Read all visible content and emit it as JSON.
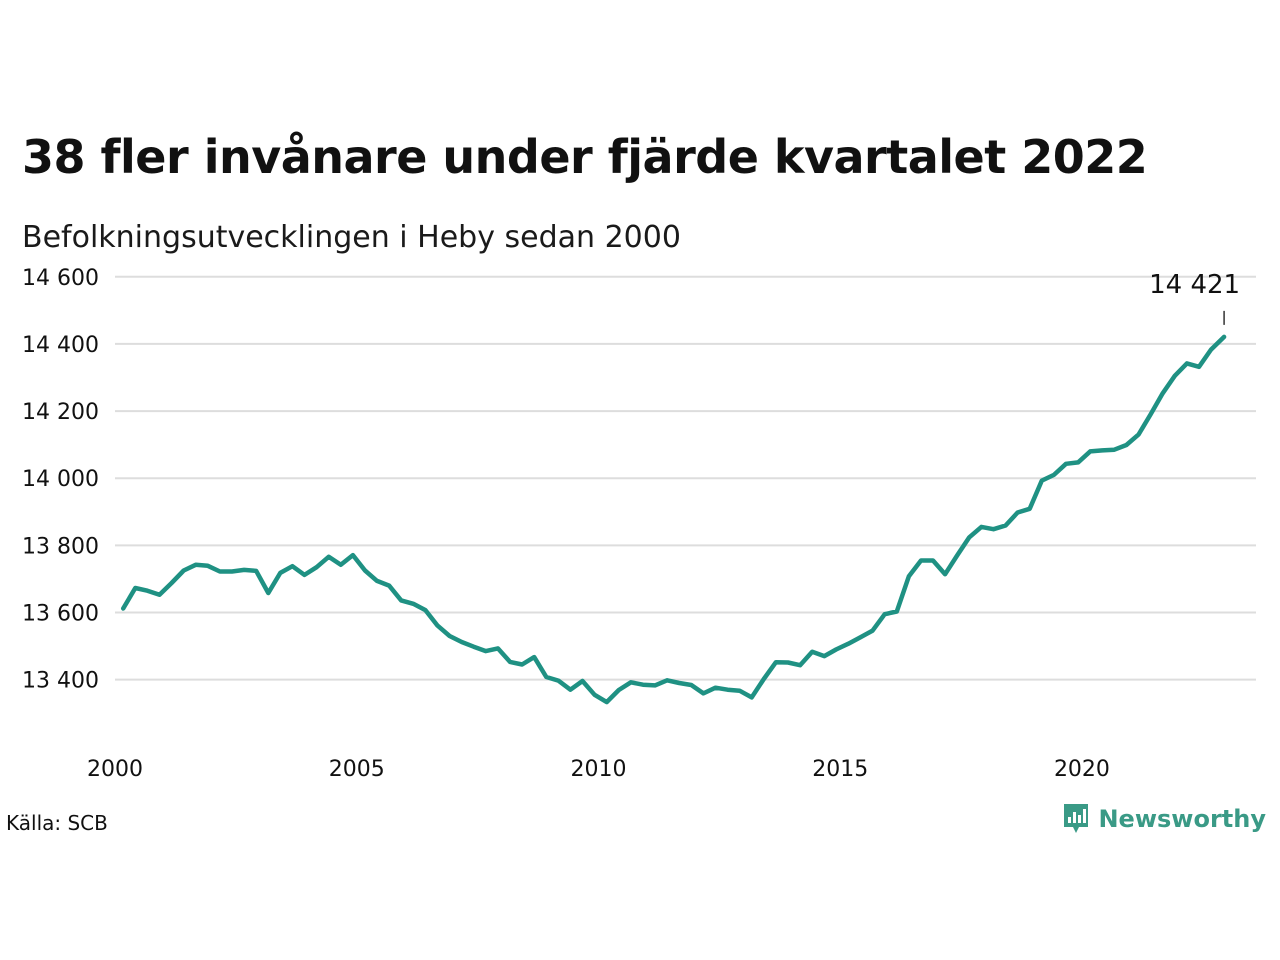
{
  "title": "38 fler invånare under fjärde kvartalet 2022",
  "subtitle": "Befolkningsutvecklingen i Heby sedan 2000",
  "source": "Källa: SCB",
  "brand": "Newsworthy",
  "colors": {
    "line": "#1f9183",
    "grid": "#dddddd",
    "brand": "#3a9a86"
  },
  "chart_data": {
    "type": "line",
    "title": "38 fler invånare under fjärde kvartalet 2022",
    "subtitle": "Befolkningsutvecklingen i Heby sedan 2000",
    "xlim": [
      2000,
      2023.6
    ],
    "ylim": [
      13250,
      14650
    ],
    "grid": true,
    "x_ticks": [
      2000,
      2005,
      2010,
      2015,
      2020
    ],
    "x_tick_labels": [
      "2000",
      "2005",
      "2010",
      "2015",
      "2020"
    ],
    "y_ticks": [
      13400,
      13600,
      13800,
      14000,
      14200,
      14400,
      14600
    ],
    "y_tick_labels": [
      "13 400",
      "13 600",
      "13 800",
      "14 000",
      "14 200",
      "14 400",
      "14 600"
    ],
    "annotation": {
      "label": "14 421",
      "x": 2022.94,
      "y": 14421
    },
    "series": [
      {
        "x": [
          2000.17,
          2000.42,
          2000.67,
          2000.92,
          2001.17,
          2001.42,
          2001.67,
          2001.92,
          2002.17,
          2002.42,
          2002.67,
          2002.92,
          2003.17,
          2003.42,
          2003.67,
          2003.92,
          2004.17,
          2004.42,
          2004.67,
          2004.92,
          2005.17,
          2005.42,
          2005.67,
          2005.92,
          2006.17,
          2006.42,
          2006.67,
          2006.92,
          2007.17,
          2007.42,
          2007.67,
          2007.92,
          2008.17,
          2008.42,
          2008.67,
          2008.92,
          2009.17,
          2009.42,
          2009.67,
          2009.92,
          2010.17,
          2010.42,
          2010.67,
          2010.92,
          2011.17,
          2011.42,
          2011.67,
          2011.92,
          2012.17,
          2012.42,
          2012.67,
          2012.92,
          2013.17,
          2013.42,
          2013.67,
          2013.92,
          2014.17,
          2014.42,
          2014.67,
          2014.92,
          2015.17,
          2015.42,
          2015.67,
          2015.92,
          2016.17,
          2016.42,
          2016.67,
          2016.92,
          2017.17,
          2017.42,
          2017.67,
          2017.92,
          2018.17,
          2018.42,
          2018.67,
          2018.92,
          2019.17,
          2019.42,
          2019.67,
          2019.92,
          2020.17,
          2020.42,
          2020.67,
          2020.92,
          2021.17,
          2021.42,
          2021.67,
          2021.92,
          2022.17,
          2022.42,
          2022.67,
          2022.94
        ],
        "values": [
          13612,
          13673,
          13665,
          13653,
          13688,
          13725,
          13742,
          13739,
          13722,
          13722,
          13727,
          13724,
          13658,
          13718,
          13738,
          13712,
          13735,
          13766,
          13742,
          13771,
          13725,
          13694,
          13680,
          13636,
          13626,
          13607,
          13561,
          13530,
          13512,
          13498,
          13485,
          13493,
          13453,
          13445,
          13467,
          13408,
          13397,
          13370,
          13396,
          13355,
          13333,
          13369,
          13392,
          13385,
          13383,
          13398,
          13390,
          13384,
          13359,
          13376,
          13370,
          13367,
          13347,
          13402,
          13452,
          13451,
          13443,
          13483,
          13470,
          13490,
          13507,
          13526,
          13546,
          13595,
          13603,
          13708,
          13755,
          13755,
          13714,
          13770,
          13824,
          13855,
          13848,
          13859,
          13898,
          13909,
          13993,
          14010,
          14043,
          14047,
          14080,
          14083,
          14085,
          14099,
          14130,
          14190,
          14253,
          14305,
          14342,
          14332,
          14383,
          14421
        ]
      }
    ]
  }
}
